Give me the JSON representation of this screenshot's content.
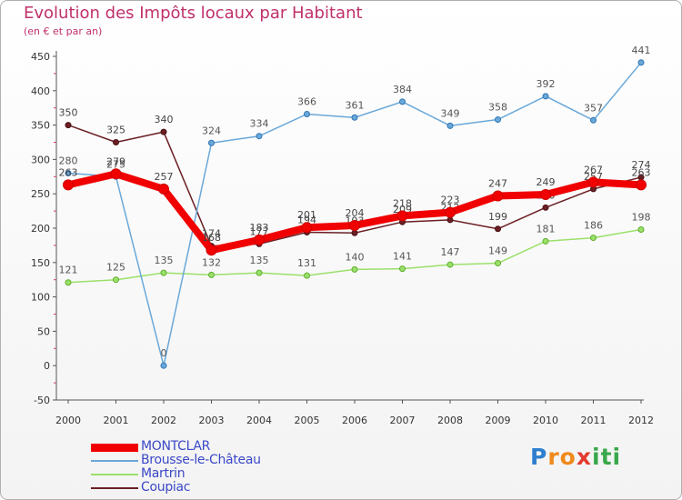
{
  "title": "Evolution des Impôts locaux par Habitant",
  "subtitle": "(en € et par an)",
  "logo": {
    "letters": [
      {
        "ch": "P",
        "color": "#2f7fd0"
      },
      {
        "ch": "r",
        "color": "#f08a1c"
      },
      {
        "ch": "o",
        "color": "#f08a1c"
      },
      {
        "ch": "x",
        "color": "#e23b2f"
      },
      {
        "ch": "i",
        "color": "#3aa84a"
      },
      {
        "ch": "t",
        "color": "#3aa84a"
      },
      {
        "ch": "i",
        "color": "#3aa84a"
      }
    ]
  },
  "chart_data": {
    "type": "line",
    "title": "Evolution des Impôts locaux par Habitant",
    "subtitle": "(en € et par an)",
    "xlabel": "",
    "ylabel": "",
    "x": [
      "2000",
      "2001",
      "2002",
      "2003",
      "2004",
      "2005",
      "2006",
      "2007",
      "2008",
      "2009",
      "2010",
      "2011",
      "2012"
    ],
    "ylim": [
      -50,
      450
    ],
    "yticks": [
      -50,
      0,
      50,
      100,
      150,
      200,
      250,
      300,
      350,
      400,
      450
    ],
    "grid": false,
    "legend_position": "bottom-left",
    "series": [
      {
        "name": "Coupiac",
        "color": "#6b1f24",
        "values": [
          350,
          325,
          340,
          174,
          177,
          194,
          193,
          209,
          212,
          199,
          230,
          257,
          274
        ],
        "labels": [
          "350",
          "325",
          "340",
          "174",
          "177",
          "194",
          "193",
          "209",
          "212",
          "199",
          "230",
          "257",
          "274"
        ]
      },
      {
        "name": "Martrin",
        "color": "#9be06a",
        "values": [
          121,
          125,
          135,
          132,
          135,
          131,
          140,
          141,
          147,
          149,
          181,
          186,
          198
        ],
        "labels": [
          "121",
          "125",
          "135",
          "132",
          "135",
          "131",
          "140",
          "141",
          "147",
          "149",
          "181",
          "186",
          "198"
        ]
      },
      {
        "name": "Brousse-le-Château",
        "color": "#6aa8d8",
        "values": [
          280,
          275,
          0,
          324,
          334,
          366,
          361,
          384,
          349,
          358,
          392,
          357,
          441
        ],
        "labels": [
          "280",
          "275",
          "0",
          "324",
          "334",
          "366",
          "361",
          "384",
          "349",
          "358",
          "392",
          "357",
          "441"
        ]
      },
      {
        "name": "MONTCLAR",
        "color": "#f00000",
        "values": [
          263,
          279,
          257,
          168,
          183,
          201,
          204,
          218,
          223,
          247,
          249,
          267,
          263
        ],
        "labels": [
          "263",
          "279",
          "257",
          "168",
          "183",
          "201",
          "204",
          "218",
          "223",
          "247",
          "249",
          "267",
          "263"
        ]
      }
    ],
    "legend_order": [
      "MONTCLAR",
      "Brousse-le-Château",
      "Martrin",
      "Coupiac"
    ]
  }
}
